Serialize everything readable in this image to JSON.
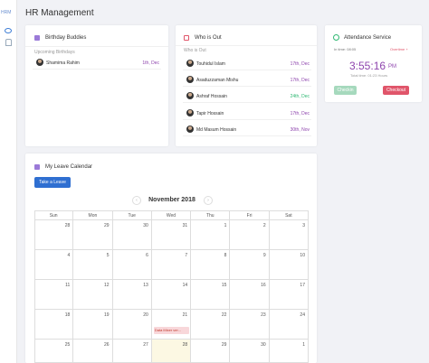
{
  "sidebar": {
    "brand": "HRM"
  },
  "header": {
    "title": "HR Management"
  },
  "birthday": {
    "title": "Birthday Buddies",
    "subtitle": "Upcoming Birthdays",
    "people": [
      {
        "name": "Shamima Rahim",
        "date": "1th, Dec",
        "color": "#8e44ad"
      }
    ]
  },
  "who_is_out": {
    "title": "Who is Out",
    "subtitle": "Who is Out",
    "people": [
      {
        "name": "Touhidul Islam",
        "date": "17th, Dec",
        "color": "#8e44ad"
      },
      {
        "name": "Asaduzzaman Mishu",
        "date": "17th, Dec",
        "color": "#8e44ad"
      },
      {
        "name": "Ashraf Hossain",
        "date": "24th, Dec",
        "color": "#2eb872"
      },
      {
        "name": "Tapir Hossain",
        "date": "17th, Dec",
        "color": "#8e44ad"
      },
      {
        "name": "Md Masum Hossain",
        "date": "30th, Nov",
        "color": "#8e44ad"
      }
    ]
  },
  "attendance": {
    "title": "Attendance Service",
    "in_time": "In time: 08:05",
    "overtime": "Overtime +",
    "clock": "3:55:16",
    "meridiem": "PM",
    "total": "Total time: 01:23 Hours",
    "checkin": "Checkin",
    "checkout": "Checkout"
  },
  "calendar": {
    "title": "My Leave Calendar",
    "button": "Take a Leave",
    "month": "November 2018",
    "weekdays": [
      "Sun",
      "Mon",
      "Tue",
      "Wed",
      "Thu",
      "Fri",
      "Sat"
    ],
    "weeks": [
      [
        28,
        29,
        30,
        31,
        1,
        2,
        3
      ],
      [
        4,
        5,
        6,
        7,
        8,
        9,
        10
      ],
      [
        11,
        12,
        13,
        14,
        15,
        16,
        17
      ],
      [
        18,
        19,
        20,
        21,
        22,
        23,
        24
      ],
      [
        25,
        26,
        27,
        28,
        29,
        30,
        1
      ]
    ],
    "event": "Data Mixer ver..."
  }
}
